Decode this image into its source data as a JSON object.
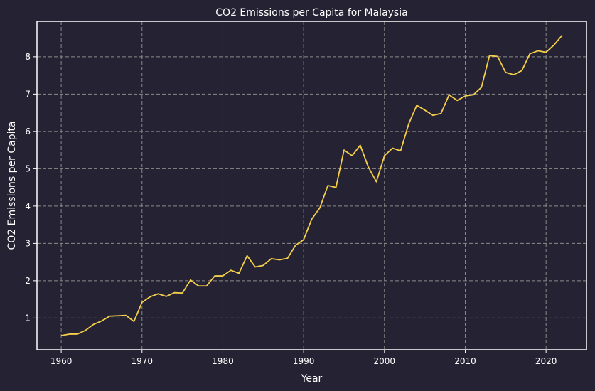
{
  "chart_data": {
    "type": "line",
    "title": "CO2 Emissions per Capita for Malaysia",
    "xlabel": "Year",
    "ylabel": "CO2 Emissions per Capita",
    "xlim": [
      1957,
      2025
    ],
    "ylim": [
      0.15,
      8.95
    ],
    "x_ticks": [
      1960,
      1970,
      1980,
      1990,
      2000,
      2010,
      2020
    ],
    "y_ticks": [
      1,
      2,
      3,
      4,
      5,
      6,
      7,
      8
    ],
    "grid": true,
    "colors": {
      "background": "#252333",
      "line": "#F5CE4A",
      "grid": "#8A8A8A",
      "axes": "#FFFFFF"
    },
    "series": [
      {
        "x": [
          1960,
          1961,
          1962,
          1963,
          1964,
          1965,
          1966,
          1967,
          1968,
          1969,
          1970,
          1971,
          1972,
          1973,
          1974,
          1975,
          1976,
          1977,
          1978,
          1979,
          1980,
          1981,
          1982,
          1983,
          1984,
          1985,
          1986,
          1987,
          1988,
          1989,
          1990,
          1991,
          1992,
          1993,
          1994,
          1995,
          1996,
          1997,
          1998,
          1999,
          2000,
          2001,
          2002,
          2003,
          2004,
          2005,
          2006,
          2007,
          2008,
          2009,
          2010,
          2011,
          2012,
          2013,
          2014,
          2015,
          2016,
          2017,
          2018,
          2019,
          2020,
          2021,
          2022
        ],
        "values": [
          0.53,
          0.57,
          0.57,
          0.67,
          0.83,
          0.92,
          1.05,
          1.06,
          1.07,
          0.91,
          1.42,
          1.57,
          1.65,
          1.58,
          1.68,
          1.67,
          2.02,
          1.86,
          1.86,
          2.13,
          2.13,
          2.28,
          2.2,
          2.67,
          2.37,
          2.41,
          2.59,
          2.56,
          2.6,
          2.95,
          3.1,
          3.65,
          3.95,
          4.55,
          4.5,
          5.5,
          5.35,
          5.63,
          5.05,
          4.65,
          5.35,
          5.55,
          5.48,
          6.2,
          6.7,
          6.57,
          6.43,
          6.48,
          6.98,
          6.83,
          6.95,
          6.98,
          7.18,
          8.03,
          8.01,
          7.58,
          7.52,
          7.63,
          8.08,
          8.16,
          8.12,
          8.32,
          8.58
        ]
      }
    ]
  }
}
